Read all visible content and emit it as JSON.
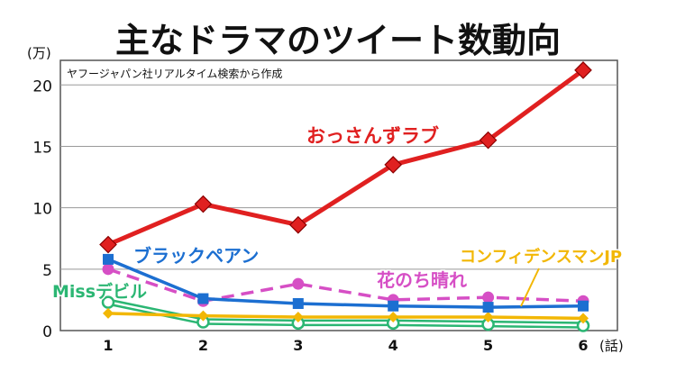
{
  "chart_data": {
    "type": "line",
    "title": "主なドラマのツイート数動向",
    "source_note": "ヤフージャパン社リアルタイム検索から作成",
    "ylabel": "(万)",
    "xlabel": "(話)",
    "ylim": [
      0,
      22
    ],
    "yticks": [
      0,
      5,
      10,
      15,
      20
    ],
    "x": [
      1,
      2,
      3,
      4,
      5,
      6
    ],
    "grid": true,
    "series": [
      {
        "name": "おっさんずラブ",
        "values": [
          7.0,
          10.3,
          8.6,
          13.5,
          15.5,
          21.2
        ],
        "color": "#e02020",
        "marker": "diamond",
        "dashed": false
      },
      {
        "name": "ブラックペアン",
        "values": [
          5.8,
          2.6,
          2.2,
          2.0,
          1.9,
          2.0
        ],
        "color": "#1c6fd1",
        "marker": "square",
        "dashed": false
      },
      {
        "name": "花のち晴れ",
        "values": [
          5.0,
          2.4,
          3.8,
          2.5,
          2.7,
          2.4
        ],
        "color": "#d64fc5",
        "marker": "circle",
        "dashed": true
      },
      {
        "name": "コンフィデンスマンJP",
        "values": [
          1.4,
          1.2,
          1.1,
          1.1,
          1.1,
          1.0
        ],
        "color": "#f2b705",
        "marker": "diamond-small",
        "dashed": false
      },
      {
        "name": "Missデビル",
        "values": [
          2.3,
          0.7,
          0.6,
          0.6,
          0.5,
          0.4
        ],
        "color": "#2bb673",
        "marker": "circle-open",
        "dashed": false
      }
    ]
  }
}
